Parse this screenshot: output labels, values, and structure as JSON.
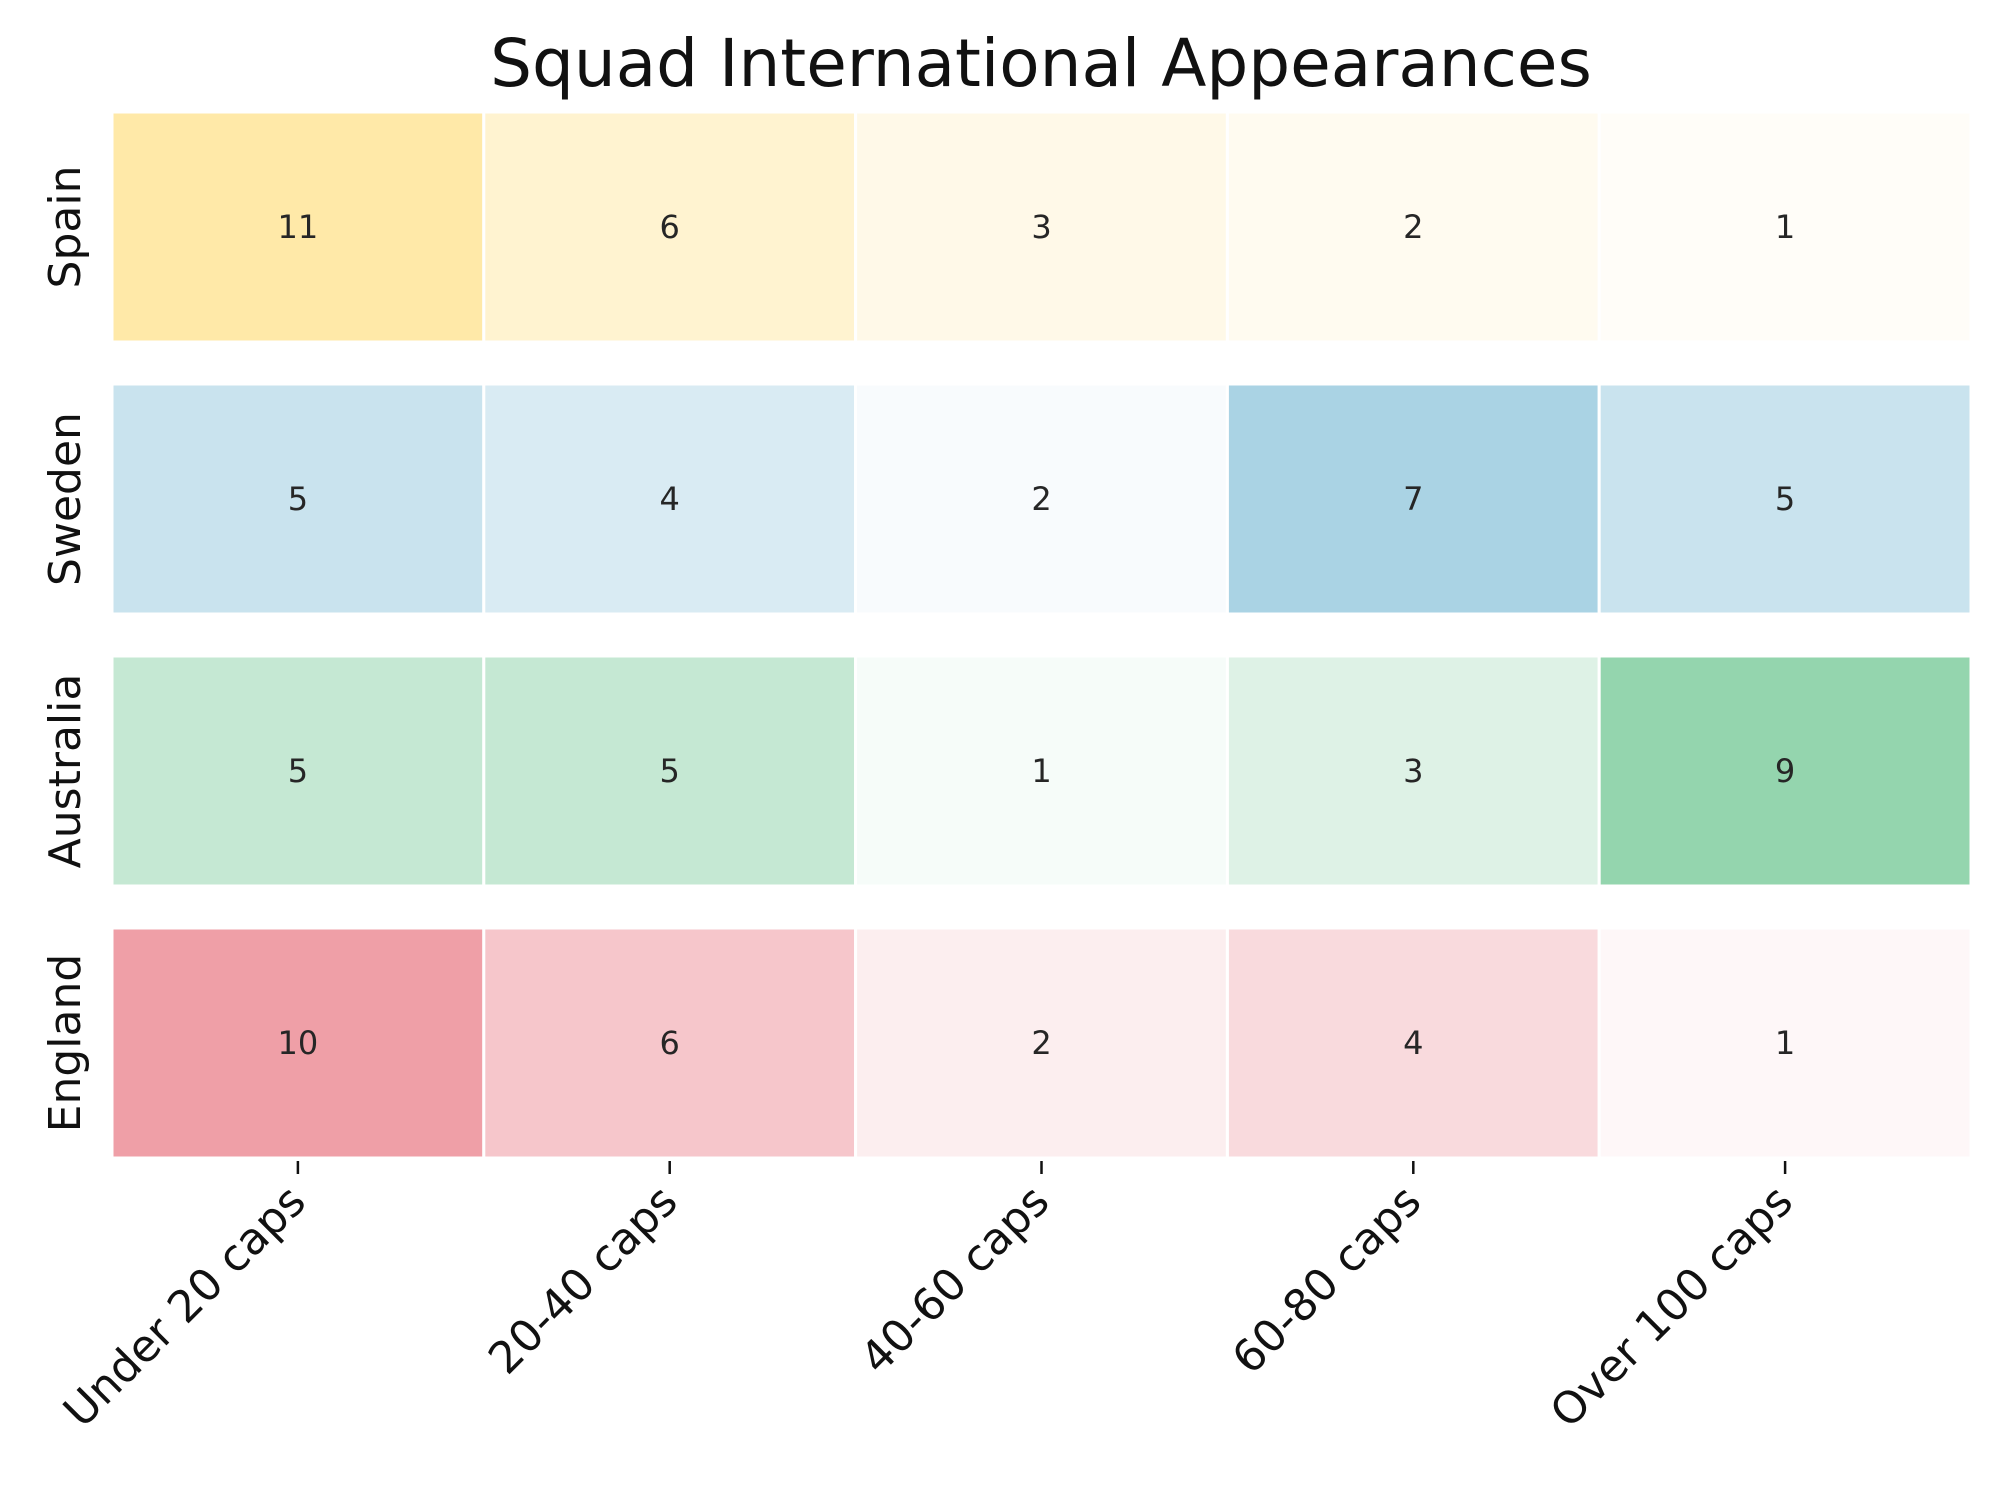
{
  "chart_data": {
    "type": "heatmap",
    "title": "Squad International Appearances",
    "xlabel": "",
    "ylabel": "",
    "grid": false,
    "legend": "none",
    "categories": [
      "Under 20 caps",
      "20-40 caps",
      "40-60 caps",
      "60-80 caps",
      "Over 100 caps"
    ],
    "rows": [
      {
        "name": "Spain",
        "values": [
          11,
          6,
          3,
          2,
          1
        ],
        "color": "#ffe9a8"
      },
      {
        "name": "Sweden",
        "values": [
          5,
          4,
          2,
          7,
          5
        ],
        "color": "#aad3e4"
      },
      {
        "name": "Australia",
        "values": [
          5,
          5,
          1,
          3,
          9
        ],
        "color": "#94d5ae"
      },
      {
        "name": "England",
        "values": [
          10,
          6,
          2,
          4,
          1
        ],
        "color": "#ef9fa7"
      }
    ]
  }
}
